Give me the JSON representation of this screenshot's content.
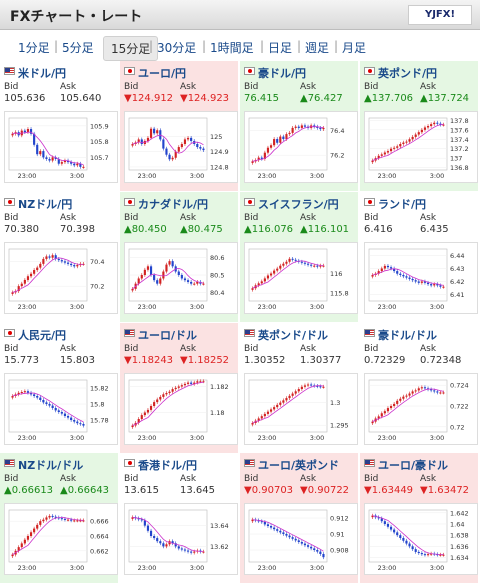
{
  "header": {
    "title": "FXチャート・レート",
    "logo": "YJFX!"
  },
  "tabs": [
    {
      "label": "1分足",
      "active": false
    },
    {
      "label": "5分足",
      "active": false
    },
    {
      "label": "15分足",
      "active": true
    },
    {
      "label": "30分足",
      "active": false
    },
    {
      "label": "1時間足",
      "active": false
    },
    {
      "label": "日足",
      "active": false
    },
    {
      "label": "週足",
      "active": false
    },
    {
      "label": "月足",
      "active": false
    }
  ],
  "labels": {
    "bid": "Bid",
    "ask": "Ask"
  },
  "colors": {
    "up_bg": "#e5f7e3",
    "down_bg": "#fbe2e2",
    "up": "#1a8a1a",
    "down": "#d22222",
    "candle_up": "#d22222",
    "candle_down": "#2244cc",
    "ma": "#cc33cc"
  },
  "pairs": [
    {
      "name": "米ドル/円",
      "flag": "us",
      "trend": "neutral",
      "bid": "105.636",
      "ask": "105.640",
      "chart_data": {
        "type": "candlestick",
        "x_ticks": [
          "23:00",
          "3:00"
        ],
        "y_ticks": [
          "105.9",
          "105.8",
          "105.7"
        ],
        "ylim": [
          105.62,
          105.95
        ],
        "close": [
          105.85,
          105.86,
          105.84,
          105.87,
          105.86,
          105.88,
          105.85,
          105.78,
          105.72,
          105.74,
          105.7,
          105.69,
          105.68,
          105.7,
          105.69,
          105.66,
          105.67,
          105.68,
          105.67,
          105.66,
          105.65,
          105.66,
          105.64,
          105.64
        ]
      }
    },
    {
      "name": "ユーロ/円",
      "flag": "jp",
      "trend": "down",
      "bid": "▼124.912",
      "ask": "▼124.923",
      "chart_data": {
        "type": "candlestick",
        "x_ticks": [
          "23:00",
          "3:00"
        ],
        "y_ticks": [
          "125",
          "124.9",
          "124.8"
        ],
        "ylim": [
          124.78,
          125.12
        ],
        "close": [
          124.95,
          124.96,
          124.98,
          124.95,
          124.97,
          124.99,
          125.05,
          125.02,
          125.04,
          124.98,
          124.92,
          124.88,
          124.85,
          124.86,
          124.9,
          124.93,
          124.95,
          124.98,
          124.99,
          124.97,
          124.95,
          124.93,
          124.92,
          124.91
        ]
      }
    },
    {
      "name": "豪ドル/円",
      "flag": "jp",
      "trend": "up",
      "bid": "76.415",
      "ask": "▲76.427",
      "chart_data": {
        "type": "candlestick",
        "x_ticks": [
          "23:00",
          "3:00"
        ],
        "y_ticks": [
          "76.4",
          "76.2"
        ],
        "ylim": [
          76.08,
          76.5
        ],
        "close": [
          76.15,
          76.16,
          76.18,
          76.17,
          76.22,
          76.26,
          76.28,
          76.33,
          76.3,
          76.35,
          76.33,
          76.37,
          76.38,
          76.42,
          76.43,
          76.42,
          76.44,
          76.43,
          76.42,
          76.44,
          76.43,
          76.42,
          76.41,
          76.42
        ]
      }
    },
    {
      "name": "英ポンド/円",
      "flag": "jp",
      "trend": "up",
      "bid": "▲137.706",
      "ask": "▲137.724",
      "chart_data": {
        "type": "candlestick",
        "x_ticks": [
          "23:00",
          "3:00"
        ],
        "y_ticks": [
          "137.8",
          "137.6",
          "137.4",
          "137.2",
          "137",
          "136.8"
        ],
        "ylim": [
          136.75,
          137.85
        ],
        "close": [
          136.95,
          137.0,
          137.05,
          137.08,
          137.12,
          137.15,
          137.2,
          137.22,
          137.25,
          137.3,
          137.33,
          137.35,
          137.4,
          137.45,
          137.5,
          137.55,
          137.6,
          137.65,
          137.68,
          137.72,
          137.75,
          137.73,
          137.71,
          137.71
        ]
      }
    },
    {
      "name": "NZドル/円",
      "flag": "jp",
      "trend": "neutral",
      "bid": "70.380",
      "ask": "70.398",
      "chart_data": {
        "type": "candlestick",
        "x_ticks": [
          "23:00",
          "3:00"
        ],
        "y_ticks": [
          "70.4",
          "70.2"
        ],
        "ylim": [
          70.08,
          70.5
        ],
        "close": [
          70.15,
          70.16,
          70.2,
          70.22,
          70.25,
          70.28,
          70.3,
          70.33,
          70.35,
          70.38,
          70.42,
          70.44,
          70.43,
          70.45,
          70.42,
          70.41,
          70.4,
          70.39,
          70.38,
          70.37,
          70.36,
          70.37,
          70.38,
          70.38
        ]
      }
    },
    {
      "name": "カナダドル/円",
      "flag": "jp",
      "trend": "up",
      "bid": "▲80.450",
      "ask": "▲80.475",
      "chart_data": {
        "type": "candlestick",
        "x_ticks": [
          "23:00",
          "3:00"
        ],
        "y_ticks": [
          "80.6",
          "80.5",
          "80.4"
        ],
        "ylim": [
          80.35,
          80.65
        ],
        "close": [
          80.42,
          80.45,
          80.48,
          80.5,
          80.53,
          80.55,
          80.5,
          80.47,
          80.45,
          80.48,
          80.52,
          80.56,
          80.58,
          80.55,
          80.52,
          80.5,
          80.48,
          80.47,
          80.46,
          80.45,
          80.45,
          80.46,
          80.45,
          80.45
        ]
      }
    },
    {
      "name": "スイスフラン/円",
      "flag": "jp",
      "trend": "up",
      "bid": "▲116.076",
      "ask": "▲116.101",
      "chart_data": {
        "type": "candlestick",
        "x_ticks": [
          "23:00",
          "3:00"
        ],
        "y_ticks": [
          "116",
          "115.8"
        ],
        "ylim": [
          115.72,
          116.25
        ],
        "close": [
          115.85,
          115.88,
          115.9,
          115.92,
          115.95,
          115.98,
          116.0,
          116.03,
          116.05,
          116.08,
          116.1,
          116.12,
          116.15,
          116.14,
          116.13,
          116.12,
          116.11,
          116.1,
          116.09,
          116.08,
          116.08,
          116.07,
          116.08,
          116.08
        ]
      }
    },
    {
      "name": "ランド/円",
      "flag": "jp",
      "trend": "neutral",
      "bid": "6.416",
      "ask": "6.435",
      "chart_data": {
        "type": "candlestick",
        "x_ticks": [
          "23:00",
          "3:00"
        ],
        "y_ticks": [
          "6.44",
          "6.43",
          "6.42",
          "6.41"
        ],
        "ylim": [
          6.405,
          6.445
        ],
        "close": [
          6.425,
          6.426,
          6.428,
          6.43,
          6.432,
          6.431,
          6.43,
          6.428,
          6.426,
          6.425,
          6.424,
          6.423,
          6.422,
          6.421,
          6.42,
          6.419,
          6.42,
          6.419,
          6.418,
          6.417,
          6.418,
          6.417,
          6.416,
          6.416
        ]
      }
    },
    {
      "name": "人民元/円",
      "flag": "jp",
      "trend": "neutral",
      "bid": "15.773",
      "ask": "15.803",
      "chart_data": {
        "type": "candlestick",
        "x_ticks": [
          "23:00",
          "3:00"
        ],
        "y_ticks": [
          "15.82",
          "15.8",
          "15.78"
        ],
        "ylim": [
          15.765,
          15.83
        ],
        "close": [
          15.81,
          15.812,
          15.814,
          15.815,
          15.816,
          15.814,
          15.812,
          15.81,
          15.808,
          15.805,
          15.802,
          15.8,
          15.798,
          15.795,
          15.792,
          15.79,
          15.788,
          15.785,
          15.783,
          15.78,
          15.778,
          15.776,
          15.775,
          15.773
        ]
      }
    },
    {
      "name": "ユーロ/ドル",
      "flag": "us",
      "trend": "down",
      "bid": "▼1.18243",
      "ask": "▼1.18252",
      "chart_data": {
        "type": "candlestick",
        "x_ticks": [
          "23:00",
          "3:00"
        ],
        "y_ticks": [
          "1.182",
          "1.18"
        ],
        "ylim": [
          1.1785,
          1.1825
        ],
        "close": [
          1.179,
          1.1792,
          1.1795,
          1.1798,
          1.18,
          1.1802,
          1.1805,
          1.1808,
          1.181,
          1.1812,
          1.1814,
          1.1815,
          1.1816,
          1.1818,
          1.1819,
          1.182,
          1.1821,
          1.1822,
          1.1823,
          1.1822,
          1.1823,
          1.1824,
          1.1824,
          1.1824
        ]
      }
    },
    {
      "name": "英ポンド/ドル",
      "flag": "us",
      "trend": "neutral",
      "bid": "1.30352",
      "ask": "1.30377",
      "chart_data": {
        "type": "candlestick",
        "x_ticks": [
          "23:00",
          "3:00"
        ],
        "y_ticks": [
          "1.3",
          "1.295"
        ],
        "ylim": [
          1.2935,
          1.305
        ],
        "close": [
          1.2955,
          1.296,
          1.2965,
          1.297,
          1.2975,
          1.298,
          1.2985,
          1.299,
          1.2995,
          1.3,
          1.3005,
          1.301,
          1.3015,
          1.302,
          1.3025,
          1.303,
          1.3035,
          1.3038,
          1.304,
          1.3038,
          1.3037,
          1.3036,
          1.3035,
          1.3035
        ]
      }
    },
    {
      "name": "豪ドル/ドル",
      "flag": "us",
      "trend": "neutral",
      "bid": "0.72329",
      "ask": "0.72348",
      "chart_data": {
        "type": "candlestick",
        "x_ticks": [
          "23:00",
          "3:00"
        ],
        "y_ticks": [
          "0.724",
          "0.722",
          "0.72"
        ],
        "ylim": [
          0.7195,
          0.7245
        ],
        "close": [
          0.7205,
          0.7208,
          0.721,
          0.7213,
          0.7215,
          0.7218,
          0.722,
          0.7222,
          0.7225,
          0.7227,
          0.7229,
          0.723,
          0.7232,
          0.7234,
          0.7235,
          0.7237,
          0.7238,
          0.7237,
          0.7236,
          0.7235,
          0.7234,
          0.7233,
          0.7233,
          0.7233
        ]
      }
    },
    {
      "name": "NZドル/ドル",
      "flag": "us",
      "trend": "up",
      "bid": "▲0.66613",
      "ask": "▲0.66643",
      "chart_data": {
        "type": "candlestick",
        "x_ticks": [
          "23:00",
          "3:00"
        ],
        "y_ticks": [
          "0.666",
          "0.664",
          "0.662"
        ],
        "ylim": [
          0.6605,
          0.6675
        ],
        "close": [
          0.6615,
          0.662,
          0.6625,
          0.663,
          0.6635,
          0.664,
          0.6645,
          0.665,
          0.6655,
          0.666,
          0.6662,
          0.6665,
          0.6667,
          0.6666,
          0.6665,
          0.6664,
          0.6663,
          0.6662,
          0.6662,
          0.6661,
          0.6661,
          0.6661,
          0.6661,
          0.6661
        ]
      }
    },
    {
      "name": "香港ドル/円",
      "flag": "jp",
      "trend": "neutral",
      "bid": "13.615",
      "ask": "13.645",
      "chart_data": {
        "type": "candlestick",
        "x_ticks": [
          "23:00",
          "3:00"
        ],
        "y_ticks": [
          "13.64",
          "13.62"
        ],
        "ylim": [
          13.605,
          13.655
        ],
        "close": [
          13.648,
          13.647,
          13.646,
          13.645,
          13.64,
          13.635,
          13.63,
          13.628,
          13.625,
          13.623,
          13.62,
          13.622,
          13.625,
          13.623,
          13.62,
          13.618,
          13.617,
          13.616,
          13.615,
          13.614,
          13.615,
          13.616,
          13.615,
          13.615
        ]
      }
    },
    {
      "name": "ユーロ/英ポンド",
      "flag": "us",
      "trend": "down",
      "bid": "▼0.90703",
      "ask": "▼0.90722",
      "chart_data": {
        "type": "candlestick",
        "x_ticks": [
          "23:00",
          "3:00"
        ],
        "y_ticks": [
          "0.912",
          "0.91",
          "0.908"
        ],
        "ylim": [
          0.9065,
          0.913
        ],
        "close": [
          0.9118,
          0.9117,
          0.9116,
          0.9115,
          0.9112,
          0.911,
          0.9108,
          0.9106,
          0.9104,
          0.9102,
          0.91,
          0.9098,
          0.9096,
          0.9094,
          0.9092,
          0.909,
          0.9088,
          0.9086,
          0.9084,
          0.9082,
          0.908,
          0.9078,
          0.9075,
          0.9071
        ]
      }
    },
    {
      "name": "ユーロ/豪ドル",
      "flag": "us",
      "trend": "down",
      "bid": "▼1.63449",
      "ask": "▼1.63472",
      "chart_data": {
        "type": "candlestick",
        "x_ticks": [
          "23:00",
          "3:00"
        ],
        "y_ticks": [
          "1.642",
          "1.64",
          "1.638",
          "1.636",
          "1.634"
        ],
        "ylim": [
          1.6332,
          1.6425
        ],
        "close": [
          1.6415,
          1.6412,
          1.641,
          1.6405,
          1.64,
          1.6395,
          1.639,
          1.6385,
          1.638,
          1.6375,
          1.637,
          1.6365,
          1.636,
          1.6355,
          1.635,
          1.6348,
          1.6346,
          1.6345,
          1.6346,
          1.6347,
          1.6346,
          1.6345,
          1.6345,
          1.6345
        ]
      }
    }
  ]
}
